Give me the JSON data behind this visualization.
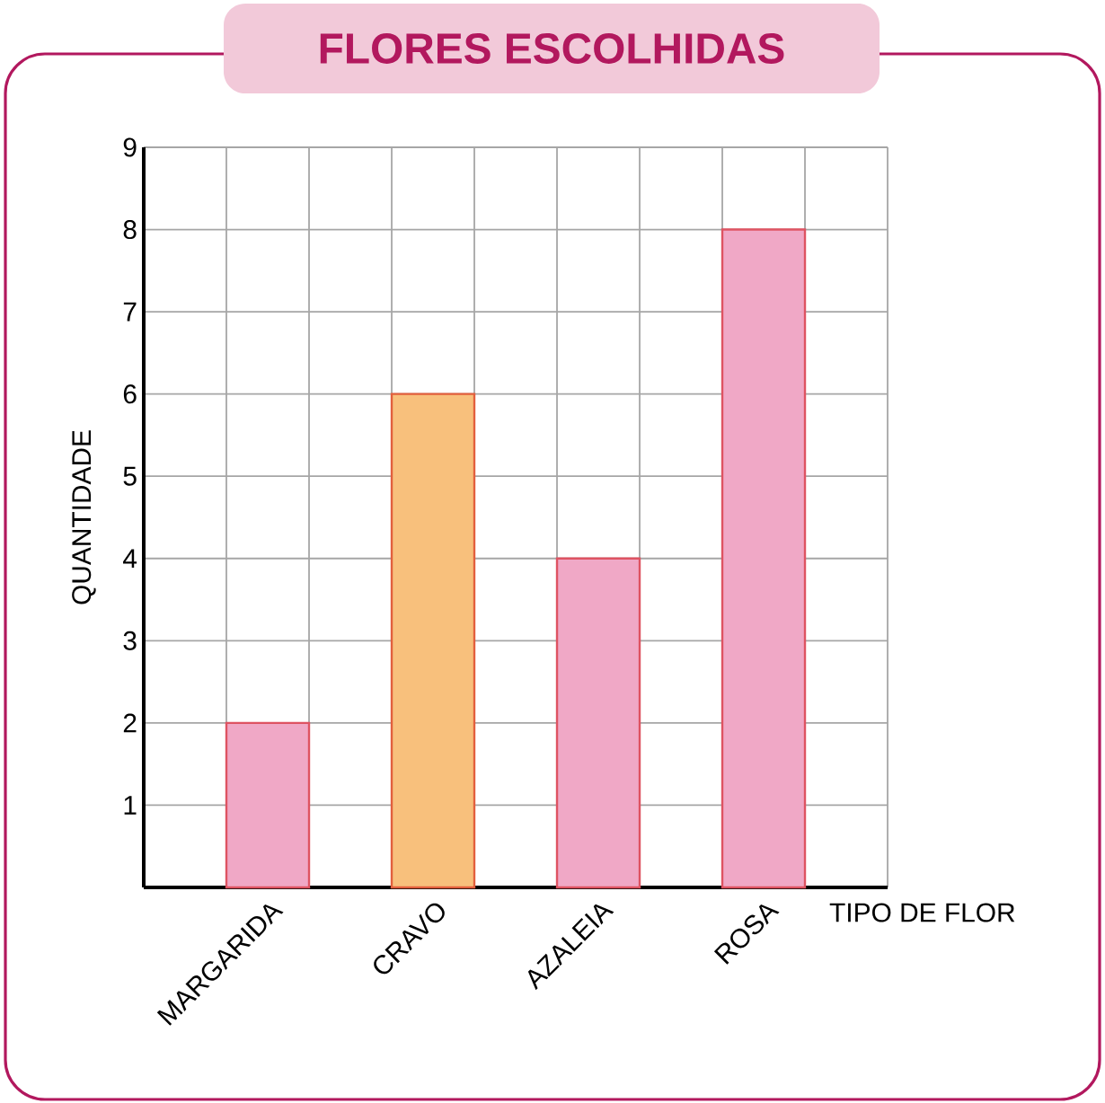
{
  "chart_data": {
    "type": "bar",
    "title": "FLORES ESCOLHIDAS",
    "xlabel": "TIPO DE FLOR",
    "ylabel": "QUANTIDADE",
    "categories": [
      "MARGARIDA",
      "CRAVO",
      "AZALEIA",
      "ROSA"
    ],
    "values": [
      2,
      6,
      4,
      8
    ],
    "colors": [
      "#f0a8c6",
      "#f8c07c",
      "#f0a8c6",
      "#f0a8c6"
    ],
    "ylim": [
      0,
      9
    ],
    "yticks": [
      {
        "value": 0,
        "label": null
      },
      1,
      2,
      3,
      4,
      5,
      6,
      7,
      8,
      9
    ],
    "grid": true
  }
}
